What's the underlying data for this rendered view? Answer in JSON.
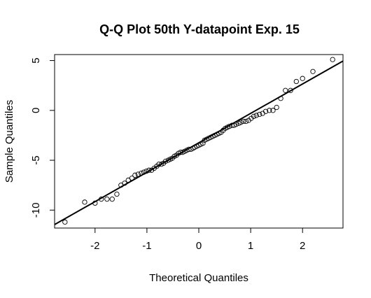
{
  "chart_data": {
    "type": "scatter",
    "title": "Q-Q Plot 50th Y-datapoint Exp. 15",
    "xlabel": "Theoretical Quantiles",
    "ylabel": "Sample Quantiles",
    "xlim": [
      -2.78,
      2.78
    ],
    "ylim": [
      -11.8,
      5.6
    ],
    "xticks": [
      -2,
      -1,
      0,
      1,
      2
    ],
    "xtick_labels": [
      "-2",
      "-1",
      "0",
      "1",
      "2"
    ],
    "yticks": [
      -10,
      -5,
      0,
      5
    ],
    "ytick_labels": [
      "-10",
      "-5",
      "0",
      "5"
    ],
    "grid": false,
    "legend": "none",
    "reference_line": {
      "intercept": -3.25,
      "slope": 2.95
    },
    "points": [
      [
        -2.58,
        -11.2
      ],
      [
        -2.2,
        -9.2
      ],
      [
        -2.0,
        -9.3
      ],
      [
        -1.88,
        -8.9
      ],
      [
        -1.77,
        -8.9
      ],
      [
        -1.67,
        -8.9
      ],
      [
        -1.58,
        -8.4
      ],
      [
        -1.5,
        -7.5
      ],
      [
        -1.43,
        -7.3
      ],
      [
        -1.36,
        -7.0
      ],
      [
        -1.29,
        -6.8
      ],
      [
        -1.23,
        -6.5
      ],
      [
        -1.17,
        -6.4
      ],
      [
        -1.11,
        -6.3
      ],
      [
        -1.06,
        -6.2
      ],
      [
        -1.01,
        -6.1
      ],
      [
        -0.96,
        -6.0
      ],
      [
        -0.91,
        -6.0
      ],
      [
        -0.86,
        -5.8
      ],
      [
        -0.81,
        -5.6
      ],
      [
        -0.77,
        -5.4
      ],
      [
        -0.72,
        -5.4
      ],
      [
        -0.68,
        -5.3
      ],
      [
        -0.64,
        -5.1
      ],
      [
        -0.59,
        -5.0
      ],
      [
        -0.55,
        -4.9
      ],
      [
        -0.51,
        -4.8
      ],
      [
        -0.47,
        -4.6
      ],
      [
        -0.43,
        -4.5
      ],
      [
        -0.39,
        -4.3
      ],
      [
        -0.35,
        -4.2
      ],
      [
        -0.31,
        -4.2
      ],
      [
        -0.27,
        -4.1
      ],
      [
        -0.23,
        -4.0
      ],
      [
        -0.19,
        -3.9
      ],
      [
        -0.15,
        -3.9
      ],
      [
        -0.11,
        -3.8
      ],
      [
        -0.08,
        -3.7
      ],
      [
        -0.04,
        -3.6
      ],
      [
        0.0,
        -3.5
      ],
      [
        0.04,
        -3.4
      ],
      [
        0.08,
        -3.3
      ],
      [
        0.11,
        -3.0
      ],
      [
        0.15,
        -2.9
      ],
      [
        0.19,
        -2.8
      ],
      [
        0.23,
        -2.7
      ],
      [
        0.27,
        -2.6
      ],
      [
        0.31,
        -2.5
      ],
      [
        0.35,
        -2.4
      ],
      [
        0.39,
        -2.3
      ],
      [
        0.43,
        -2.2
      ],
      [
        0.47,
        -2.0
      ],
      [
        0.51,
        -1.8
      ],
      [
        0.55,
        -1.7
      ],
      [
        0.59,
        -1.6
      ],
      [
        0.64,
        -1.5
      ],
      [
        0.68,
        -1.5
      ],
      [
        0.72,
        -1.4
      ],
      [
        0.77,
        -1.3
      ],
      [
        0.81,
        -1.2
      ],
      [
        0.86,
        -1.1
      ],
      [
        0.91,
        -1.1
      ],
      [
        0.96,
        -1.0
      ],
      [
        1.01,
        -0.8
      ],
      [
        1.06,
        -0.6
      ],
      [
        1.11,
        -0.5
      ],
      [
        1.17,
        -0.4
      ],
      [
        1.23,
        -0.3
      ],
      [
        1.29,
        -0.1
      ],
      [
        1.36,
        0.0
      ],
      [
        1.43,
        0.0
      ],
      [
        1.5,
        0.3
      ],
      [
        1.58,
        1.2
      ],
      [
        1.67,
        2.0
      ],
      [
        1.77,
        2.0
      ],
      [
        1.88,
        2.9
      ],
      [
        2.0,
        3.2
      ],
      [
        2.2,
        3.9
      ],
      [
        2.58,
        5.1
      ]
    ]
  }
}
